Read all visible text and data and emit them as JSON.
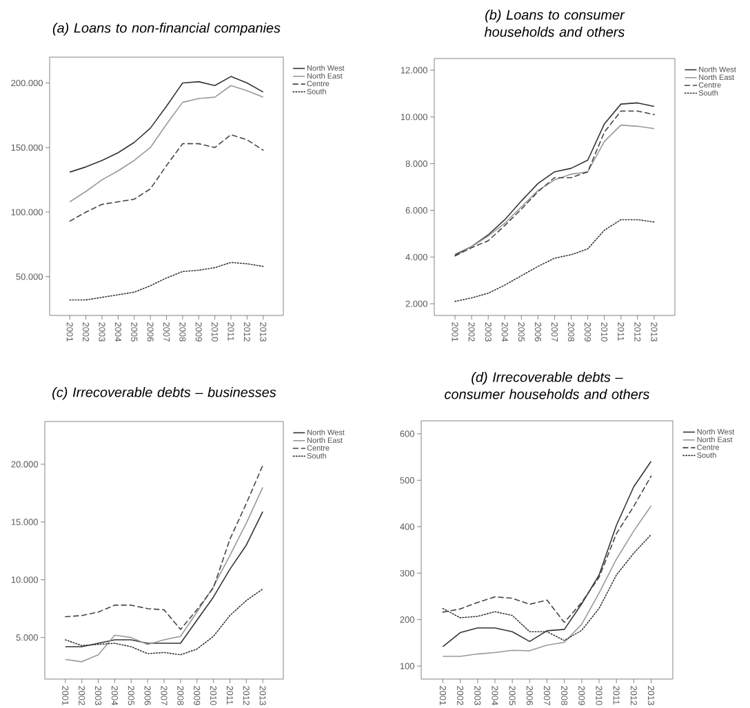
{
  "chart_data": [
    {
      "type": "line",
      "title": "(a) Loans to non-financial companies",
      "categories": [
        "2001",
        "2002",
        "2003",
        "2004",
        "2005",
        "2006",
        "2007",
        "2008",
        "2009",
        "2010",
        "2011",
        "2012",
        "2013"
      ],
      "ylim": [
        20000,
        220000
      ],
      "yticks": [
        {
          "value": 50000,
          "label": "50.000"
        },
        {
          "value": 100000,
          "label": "100.000"
        },
        {
          "value": 150000,
          "label": "150.000"
        },
        {
          "value": 200000,
          "label": "200.000"
        }
      ],
      "legend": "top right",
      "grid": false,
      "series": [
        {
          "name": "North West",
          "color": "#333333",
          "line_style": "solid",
          "values": [
            131000,
            135000,
            140000,
            146000,
            154000,
            165000,
            182000,
            200000,
            201000,
            198000,
            205000,
            200000,
            193000
          ]
        },
        {
          "name": "North East",
          "color": "#999999",
          "line_style": "solid",
          "values": [
            108000,
            116000,
            125000,
            132000,
            140000,
            150000,
            168000,
            185000,
            188000,
            189000,
            198000,
            194000,
            189000
          ]
        },
        {
          "name": "Centre",
          "color": "#444444",
          "line_style": "dashed",
          "values": [
            93000,
            100000,
            106000,
            108000,
            110000,
            118000,
            136000,
            153000,
            153000,
            150000,
            160000,
            156000,
            148000
          ]
        },
        {
          "name": "South",
          "color": "#333333",
          "line_style": "dotted",
          "values": [
            32000,
            32000,
            34000,
            36000,
            38000,
            43000,
            49000,
            54000,
            55000,
            57000,
            61000,
            60000,
            58000
          ]
        }
      ]
    },
    {
      "type": "line",
      "title": "(b) Loans to consumer households and others",
      "categories": [
        "2001",
        "2002",
        "2003",
        "2004",
        "2005",
        "2006",
        "2007",
        "2008",
        "2009",
        "2010",
        "2011",
        "2012",
        "2013"
      ],
      "ylim": [
        1500,
        12500
      ],
      "yticks": [
        {
          "value": 2000,
          "label": "2.000"
        },
        {
          "value": 4000,
          "label": "4.000"
        },
        {
          "value": 6000,
          "label": "6.000"
        },
        {
          "value": 8000,
          "label": "8.000"
        },
        {
          "value": 10000,
          "label": "10.000"
        },
        {
          "value": 12000,
          "label": "12.000"
        }
      ],
      "legend": "top right",
      "grid": false,
      "series": [
        {
          "name": "North West",
          "color": "#333333",
          "line_style": "solid",
          "values": [
            4100,
            4450,
            4950,
            5600,
            6400,
            7150,
            7650,
            7800,
            8150,
            9700,
            10550,
            10600,
            10450
          ]
        },
        {
          "name": "North East",
          "color": "#999999",
          "line_style": "solid",
          "values": [
            4050,
            4450,
            4900,
            5450,
            6150,
            6850,
            7300,
            7550,
            7650,
            8950,
            9650,
            9600,
            9500
          ]
        },
        {
          "name": "Centre",
          "color": "#444444",
          "line_style": "dashed",
          "values": [
            4050,
            4400,
            4700,
            5350,
            6050,
            6800,
            7400,
            7400,
            7650,
            9350,
            10250,
            10250,
            10100
          ]
        },
        {
          "name": "South",
          "color": "#333333",
          "line_style": "dotted",
          "values": [
            2100,
            2250,
            2450,
            2800,
            3200,
            3600,
            3950,
            4100,
            4350,
            5150,
            5600,
            5600,
            5500
          ]
        }
      ]
    },
    {
      "type": "line",
      "title": "(c) Irrecoverable debts – businesses",
      "categories": [
        "2001",
        "2002",
        "2003",
        "2004",
        "2005",
        "2006",
        "2007",
        "2008",
        "2009",
        "2010",
        "2011",
        "2012",
        "2013"
      ],
      "ylim": [
        1400,
        23700
      ],
      "yticks": [
        {
          "value": 5000,
          "label": "5.000"
        },
        {
          "value": 10000,
          "label": "10.000"
        },
        {
          "value": 15000,
          "label": "15.000"
        },
        {
          "value": 20000,
          "label": "20.000"
        }
      ],
      "legend": "top right",
      "grid": false,
      "series": [
        {
          "name": "North West",
          "color": "#333333",
          "line_style": "solid",
          "values": [
            4200,
            4200,
            4500,
            4800,
            4800,
            4500,
            4500,
            4500,
            6500,
            8500,
            10900,
            13000,
            15900
          ]
        },
        {
          "name": "North East",
          "color": "#999999",
          "line_style": "solid",
          "values": [
            3100,
            2900,
            3500,
            5200,
            5000,
            4400,
            4800,
            5100,
            7200,
            9400,
            12100,
            14900,
            18000
          ]
        },
        {
          "name": "Centre",
          "color": "#444444",
          "line_style": "dashed",
          "values": [
            6800,
            6900,
            7200,
            7800,
            7800,
            7500,
            7400,
            5700,
            7400,
            9300,
            13500,
            16600,
            19900
          ]
        },
        {
          "name": "South",
          "color": "#333333",
          "line_style": "dotted",
          "values": [
            4800,
            4300,
            4400,
            4500,
            4200,
            3600,
            3700,
            3500,
            4000,
            5100,
            6900,
            8200,
            9200
          ]
        }
      ]
    },
    {
      "type": "line",
      "title": "(d) Irrecoverable debts – consumer households and others",
      "categories": [
        "2001",
        "2002",
        "2003",
        "2004",
        "2005",
        "2006",
        "2007",
        "2008",
        "2009",
        "2010",
        "2011",
        "2012",
        "2013"
      ],
      "ylim": [
        72,
        628
      ],
      "yticks": [
        100,
        200,
        300,
        400,
        500,
        600
      ],
      "legend": "top right",
      "grid": false,
      "series": [
        {
          "name": "North West",
          "color": "#333333",
          "line_style": "solid",
          "values": [
            142,
            172,
            182,
            182,
            174,
            153,
            176,
            179,
            234,
            296,
            403,
            486,
            541
          ]
        },
        {
          "name": "North East",
          "color": "#999999",
          "line_style": "solid",
          "values": [
            121,
            121,
            126,
            129,
            134,
            133,
            145,
            151,
            190,
            257,
            330,
            391,
            445
          ]
        },
        {
          "name": "Centre",
          "color": "#444444",
          "line_style": "dashed",
          "values": [
            216,
            223,
            237,
            249,
            246,
            233,
            242,
            194,
            237,
            291,
            385,
            444,
            509
          ]
        },
        {
          "name": "South",
          "color": "#333333",
          "line_style": "dotted",
          "values": [
            224,
            204,
            207,
            217,
            209,
            174,
            174,
            155,
            177,
            224,
            296,
            343,
            383
          ]
        }
      ]
    }
  ]
}
